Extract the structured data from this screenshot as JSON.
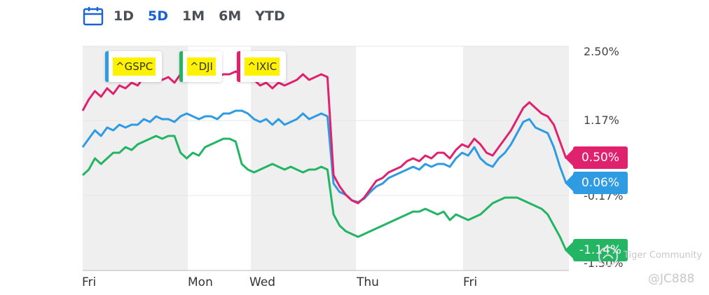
{
  "toolbar": {
    "calendar_icon": "calendar-icon",
    "ranges": [
      "1D",
      "5D",
      "1M",
      "6M",
      "YTD"
    ],
    "active": "5D",
    "active_color": "#1a63d4"
  },
  "chart_data": {
    "type": "line",
    "y_ticks": [
      "2.50%",
      "1.17%",
      "-0.17%",
      "-1.50%"
    ],
    "x_ticks": [
      "Fri",
      "Mon",
      "Wed",
      "Thu",
      "Fri"
    ],
    "ylim": [
      -1.5,
      2.5
    ],
    "grid": true,
    "legend_position": "top-left",
    "series": [
      {
        "name": "^GSPC",
        "color": "#2f9be3",
        "end_label": "0.06%",
        "values": [
          0.7,
          0.85,
          1.0,
          0.9,
          1.05,
          1.0,
          1.1,
          1.05,
          1.1,
          1.1,
          1.2,
          1.15,
          1.25,
          1.2,
          1.2,
          1.15,
          1.25,
          1.3,
          1.25,
          1.2,
          1.25,
          1.25,
          1.2,
          1.3,
          1.3,
          1.35,
          1.35,
          1.3,
          1.2,
          1.15,
          1.2,
          1.1,
          1.2,
          1.1,
          1.15,
          1.2,
          1.3,
          1.2,
          1.25,
          1.3,
          1.25,
          0.05,
          -0.1,
          -0.15,
          -0.25,
          -0.28,
          -0.22,
          -0.1,
          0.0,
          0.05,
          0.15,
          0.2,
          0.25,
          0.3,
          0.35,
          0.3,
          0.4,
          0.35,
          0.4,
          0.4,
          0.35,
          0.5,
          0.6,
          0.55,
          0.7,
          0.5,
          0.4,
          0.35,
          0.5,
          0.6,
          0.75,
          0.95,
          1.15,
          1.2,
          1.05,
          1.0,
          0.95,
          0.7,
          0.35,
          0.06
        ]
      },
      {
        "name": "^DJI",
        "color": "#23b464",
        "end_label": "-1.14%",
        "values": [
          0.2,
          0.3,
          0.5,
          0.4,
          0.5,
          0.6,
          0.6,
          0.7,
          0.65,
          0.75,
          0.8,
          0.85,
          0.9,
          0.85,
          0.9,
          0.9,
          0.6,
          0.5,
          0.6,
          0.55,
          0.7,
          0.75,
          0.8,
          0.85,
          0.85,
          0.8,
          0.4,
          0.3,
          0.25,
          0.3,
          0.35,
          0.4,
          0.35,
          0.3,
          0.35,
          0.3,
          0.25,
          0.3,
          0.3,
          0.35,
          0.3,
          -0.5,
          -0.7,
          -0.8,
          -0.85,
          -0.9,
          -0.85,
          -0.8,
          -0.75,
          -0.7,
          -0.65,
          -0.6,
          -0.55,
          -0.5,
          -0.45,
          -0.45,
          -0.4,
          -0.45,
          -0.5,
          -0.45,
          -0.6,
          -0.5,
          -0.55,
          -0.6,
          -0.55,
          -0.5,
          -0.4,
          -0.3,
          -0.25,
          -0.2,
          -0.2,
          -0.2,
          -0.25,
          -0.3,
          -0.35,
          -0.4,
          -0.5,
          -0.7,
          -0.9,
          -1.14
        ]
      },
      {
        "name": "^IXIC",
        "color": "#e0226e",
        "end_label": "0.50%",
        "values": [
          1.35,
          1.55,
          1.7,
          1.6,
          1.75,
          1.65,
          1.8,
          1.75,
          1.85,
          1.8,
          1.95,
          1.9,
          2.0,
          1.9,
          1.95,
          1.85,
          2.0,
          2.05,
          2.0,
          1.95,
          1.95,
          1.9,
          1.95,
          2.0,
          2.0,
          2.05,
          2.0,
          1.95,
          1.9,
          1.8,
          1.85,
          1.75,
          1.85,
          1.8,
          1.85,
          1.9,
          2.0,
          1.9,
          1.95,
          2.0,
          1.95,
          0.2,
          0.0,
          -0.15,
          -0.25,
          -0.3,
          -0.2,
          -0.05,
          0.1,
          0.15,
          0.25,
          0.3,
          0.35,
          0.45,
          0.5,
          0.45,
          0.55,
          0.5,
          0.6,
          0.6,
          0.5,
          0.65,
          0.75,
          0.7,
          0.85,
          0.75,
          0.6,
          0.55,
          0.7,
          0.85,
          1.0,
          1.2,
          1.4,
          1.5,
          1.4,
          1.3,
          1.25,
          1.1,
          0.8,
          0.5
        ]
      }
    ]
  },
  "watermark": {
    "community": "Tiger Community",
    "handle": "@JC888"
  }
}
